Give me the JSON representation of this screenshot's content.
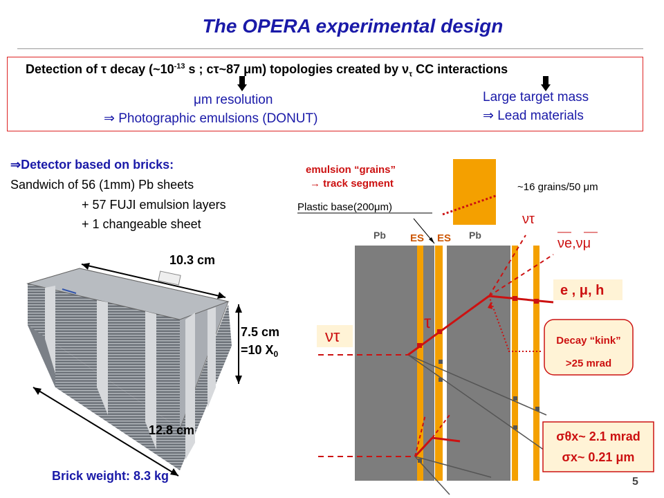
{
  "title": "The OPERA experimental design",
  "headline": {
    "p1": "Detection of ",
    "tau": "τ",
    "p2": " decay (~10",
    "exp": "-13",
    "p3": " s ; cτ~87 μm) topologies created by ν",
    "sub": "τ",
    "p4": " CC interactions"
  },
  "requirements": {
    "left_line1": "μm resolution",
    "left_line2": "⇒ Photographic emulsions (DONUT)",
    "right_line1": "Large target mass",
    "right_line2": "⇒ Lead materials"
  },
  "bricks": {
    "heading": "⇒Detector based on bricks:",
    "line1": "Sandwich of 56 (1mm) Pb sheets",
    "line2": "+ 57 FUJI emulsion layers",
    "line3": "+ 1 changeable sheet"
  },
  "dimensions": {
    "width": "10.3 cm",
    "height": "7.5 cm",
    "radiation": "=10 X",
    "radiation_sub": "0",
    "depth": "12.8 cm"
  },
  "weight": "Brick weight: 8.3 kg",
  "page_number": "5",
  "diagram": {
    "grains_line1": "emulsion “grains”",
    "grains_line2": "→ track segment",
    "grain_density": "~16 grains/50 μm",
    "plastic_base": "Plastic base(200μm)",
    "pb_left": "Pb",
    "es_1": "ES",
    "es_2": "ES",
    "pb_right": "Pb",
    "nu_tau_out": "ντ",
    "nu_e_mu": "νe,νμ",
    "products": "e , μ, h",
    "tau": "τ",
    "nu_tau_in": "ντ",
    "kink_line1": "Decay “kink”",
    "kink_line2": ">25 mrad",
    "res_angle": "σθx~ 2.1 mrad",
    "res_pos": "σx~ 0.21 μm"
  },
  "colors": {
    "title_blue": "#1a1aa8",
    "track_red": "#cc1111",
    "emulsion_orange": "#f4a000",
    "lead_gray": "#7d7d7d",
    "box_fill": "#fff3d6"
  }
}
